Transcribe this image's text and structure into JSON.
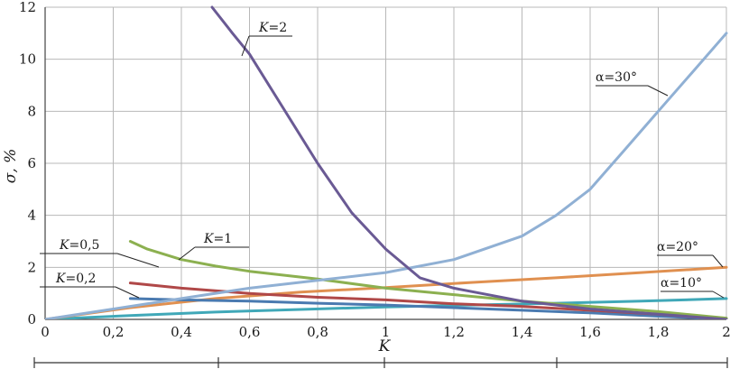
{
  "chart_data": {
    "type": "line",
    "title": "",
    "xlabel": "K",
    "ylabel": "σ, %",
    "xlim": [
      0,
      2
    ],
    "ylim": [
      0,
      12
    ],
    "grid": true,
    "x_ticks": [
      0,
      0.2,
      0.4,
      0.6,
      0.8,
      1,
      1.2,
      1.4,
      1.6,
      1.8,
      2
    ],
    "x_tick_labels": [
      "0",
      "0,2",
      "0,4",
      "0,6",
      "0,8",
      "1",
      "1,2",
      "1,4",
      "1,6",
      "1,8",
      "2"
    ],
    "y_ticks": [
      0,
      2,
      4,
      6,
      8,
      10,
      12
    ],
    "y_tick_labels": [
      "0",
      "2",
      "4",
      "6",
      "8",
      "10",
      "12"
    ],
    "series": [
      {
        "name": "K=2",
        "color": "#6a5a94",
        "x": [
          0.49,
          0.55,
          0.6,
          0.7,
          0.8,
          0.9,
          1.0,
          1.1,
          1.2,
          1.4,
          1.6,
          1.8,
          2.0
        ],
        "y": [
          12.0,
          11.0,
          10.2,
          8.1,
          6.0,
          4.1,
          2.7,
          1.6,
          1.2,
          0.7,
          0.4,
          0.2,
          0.0
        ]
      },
      {
        "name": "α=30°",
        "color": "#90b0d4",
        "x": [
          0,
          0.2,
          0.4,
          0.6,
          0.8,
          1.0,
          1.2,
          1.4,
          1.5,
          1.6,
          1.7,
          1.8,
          1.9,
          2.0
        ],
        "y": [
          0.0,
          0.4,
          0.8,
          1.2,
          1.5,
          1.8,
          2.3,
          3.2,
          4.0,
          5.0,
          6.5,
          8.0,
          9.5,
          11.0
        ]
      },
      {
        "name": "K=1",
        "color": "#8cb050",
        "x": [
          0.25,
          0.3,
          0.4,
          0.5,
          0.6,
          0.8,
          1.0,
          1.2,
          1.4,
          1.6,
          1.8,
          2.0
        ],
        "y": [
          3.0,
          2.7,
          2.3,
          2.05,
          1.85,
          1.55,
          1.2,
          0.95,
          0.7,
          0.5,
          0.3,
          0.05
        ]
      },
      {
        "name": "K=0,5",
        "color": "#b04848",
        "x": [
          0.25,
          0.4,
          0.6,
          0.8,
          1.0,
          1.2,
          1.4,
          1.6,
          1.8,
          2.0
        ],
        "y": [
          1.4,
          1.2,
          1.0,
          0.85,
          0.75,
          0.6,
          0.5,
          0.35,
          0.2,
          0.0
        ]
      },
      {
        "name": "K=0,2",
        "color": "#4a7ab0",
        "x": [
          0.25,
          0.4,
          0.6,
          0.8,
          1.0,
          1.2,
          1.4,
          1.6,
          1.8,
          2.0
        ],
        "y": [
          0.8,
          0.75,
          0.7,
          0.62,
          0.55,
          0.45,
          0.35,
          0.25,
          0.12,
          0.0
        ]
      },
      {
        "name": "α=20°",
        "color": "#e09050",
        "x": [
          0,
          0.25,
          0.5,
          0.75,
          1.0,
          1.25,
          1.5,
          1.75,
          2.0
        ],
        "y": [
          0.0,
          0.45,
          0.8,
          1.05,
          1.22,
          1.42,
          1.6,
          1.8,
          2.0
        ]
      },
      {
        "name": "α=10°",
        "color": "#40a8b8",
        "x": [
          0,
          0.25,
          0.5,
          0.75,
          1.0,
          1.25,
          1.5,
          1.75,
          2.0
        ],
        "y": [
          0.0,
          0.15,
          0.28,
          0.38,
          0.48,
          0.55,
          0.62,
          0.7,
          0.8
        ]
      }
    ],
    "annotations": [
      {
        "text": "K=2",
        "series": "K=2"
      },
      {
        "text": "α=30°",
        "series": "α=30°"
      },
      {
        "text": "K=1",
        "series": "K=1"
      },
      {
        "text": "K=0,5",
        "series": "K=0,5"
      },
      {
        "text": "K=0,2",
        "series": "K=0,2"
      },
      {
        "text": "α=20°",
        "series": "α=20°"
      },
      {
        "text": "α=10°",
        "series": "α=10°"
      }
    ]
  }
}
